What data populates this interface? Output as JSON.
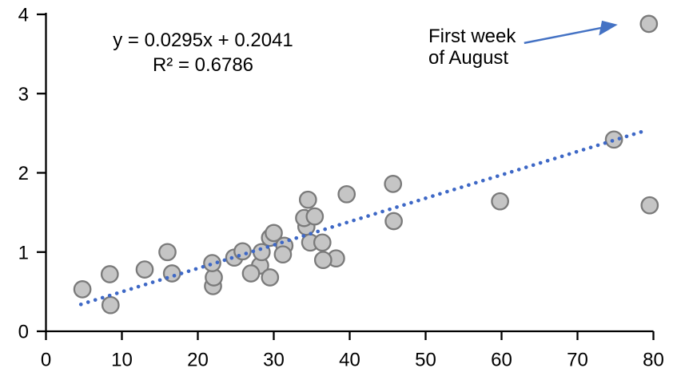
{
  "chart_data": {
    "type": "scatter",
    "title": "",
    "xlabel": "",
    "ylabel": "",
    "grid": false,
    "legend": "none",
    "x_axis": {
      "min": 0,
      "max": 80,
      "tick_step": 10,
      "tick_labels": [
        "0",
        "10",
        "20",
        "30",
        "40",
        "50",
        "60",
        "70",
        "80"
      ]
    },
    "y_axis": {
      "min": 0,
      "max": 4,
      "tick_step": 1,
      "tick_labels": [
        "0",
        "1",
        "2",
        "3",
        "4"
      ]
    },
    "equation": {
      "line1": "y = 0.0295x + 0.2041",
      "line2": "R² = 0.6786"
    },
    "annotation": {
      "line1": "First week",
      "line2": "of August",
      "points_to_x": 79.4,
      "points_to_y": 3.88
    },
    "trendline": {
      "slope": 0.0295,
      "intercept": 0.2041,
      "x_start": 4.6,
      "x_end": 79.0,
      "style": "dotted"
    },
    "points": [
      [
        4.8,
        0.53
      ],
      [
        8.4,
        0.72
      ],
      [
        8.5,
        0.33
      ],
      [
        13.0,
        0.78
      ],
      [
        16.0,
        1.0
      ],
      [
        16.6,
        0.73
      ],
      [
        22.0,
        0.57
      ],
      [
        22.1,
        0.68
      ],
      [
        21.9,
        0.86
      ],
      [
        24.8,
        0.93
      ],
      [
        25.9,
        1.01
      ],
      [
        28.2,
        0.83
      ],
      [
        27.0,
        0.73
      ],
      [
        29.5,
        0.68
      ],
      [
        28.4,
        1.0
      ],
      [
        29.5,
        1.18
      ],
      [
        30.0,
        1.24
      ],
      [
        31.4,
        1.08
      ],
      [
        31.2,
        0.97
      ],
      [
        34.5,
        1.66
      ],
      [
        34.3,
        1.32
      ],
      [
        34.0,
        1.43
      ],
      [
        35.4,
        1.45
      ],
      [
        34.8,
        1.12
      ],
      [
        36.4,
        1.12
      ],
      [
        38.2,
        0.92
      ],
      [
        36.5,
        0.9
      ],
      [
        39.6,
        1.73
      ],
      [
        45.7,
        1.86
      ],
      [
        45.8,
        1.39
      ],
      [
        59.8,
        1.64
      ],
      [
        74.8,
        2.42
      ],
      [
        79.4,
        3.88
      ],
      [
        79.5,
        1.59
      ]
    ],
    "colors": {
      "marker_fill": "#C5C5C5",
      "marker_border": "#7A7A7A",
      "trendline": "#3E68C6",
      "arrow": "#4472C4",
      "axis": "#000000",
      "text": "#000000"
    }
  }
}
